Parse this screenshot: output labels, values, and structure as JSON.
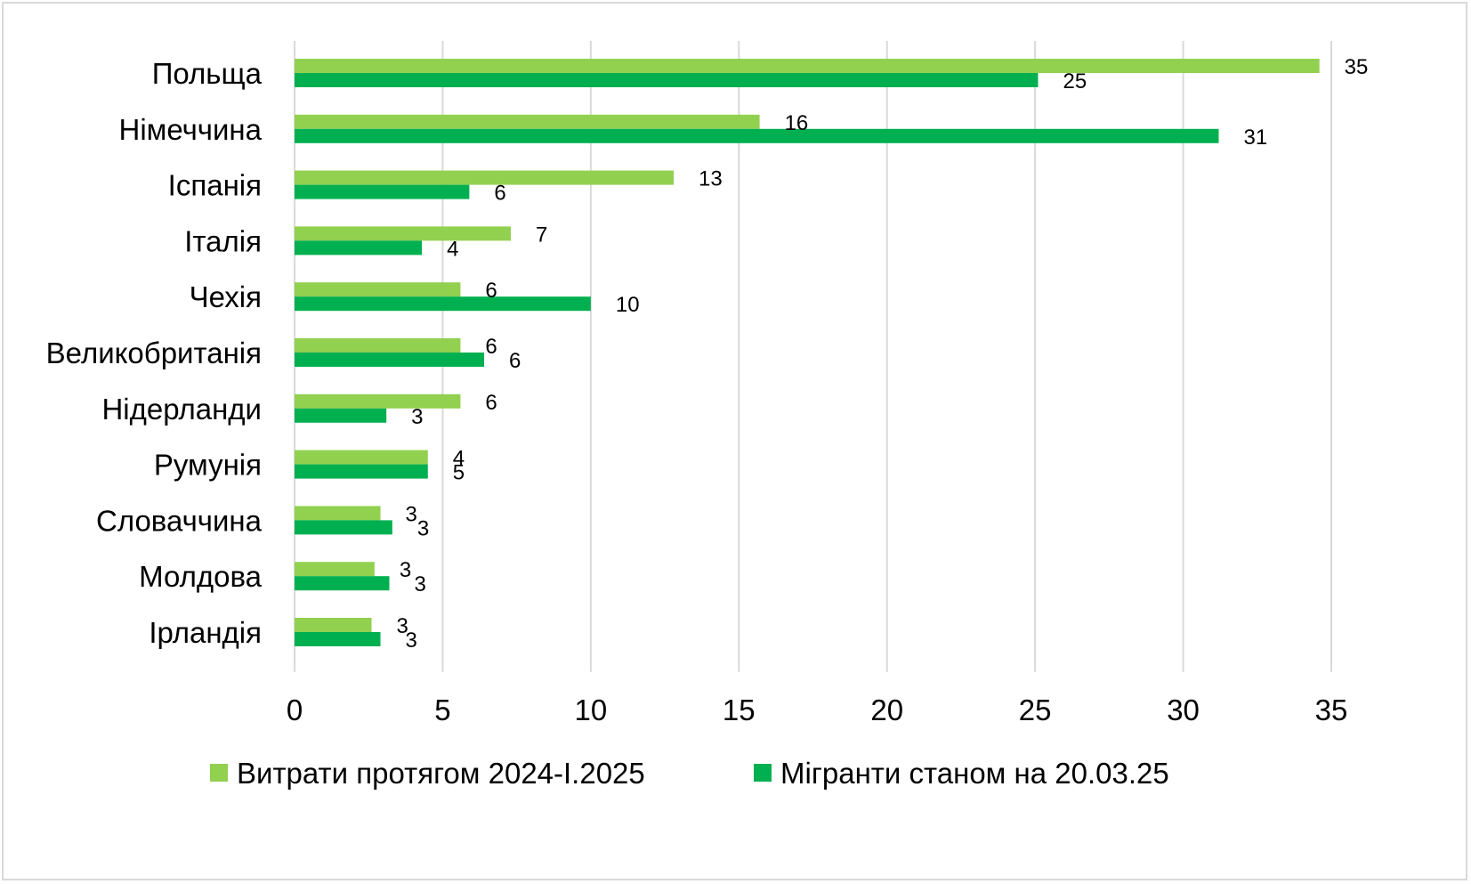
{
  "chart_data": {
    "type": "bar",
    "orientation": "horizontal",
    "title": "",
    "xlabel": "",
    "ylabel": "",
    "categories": [
      "Польща",
      "Німеччина",
      "Іспанія",
      "Італія",
      "Чехія",
      "Великобританія",
      "Нідерланди",
      "Румунія",
      "Словаччина",
      "Молдова",
      "Ірландія"
    ],
    "series": [
      {
        "name": "Витрати протягом 2024-І.2025",
        "color": "#92d050",
        "values": [
          34.6,
          15.7,
          12.8,
          7.3,
          5.6,
          5.6,
          5.6,
          4.5,
          2.9,
          2.7,
          2.6
        ],
        "labels": [
          "35",
          "16",
          "13",
          "7",
          "6",
          "6",
          "6",
          "4",
          "3",
          "3",
          "3"
        ]
      },
      {
        "name": "Мігранти станом на 20.03.25",
        "color": "#00b050",
        "values": [
          25.1,
          31.2,
          5.9,
          4.3,
          10.0,
          6.4,
          3.1,
          4.5,
          3.3,
          3.2,
          2.9
        ],
        "labels": [
          "25",
          "31",
          "6",
          "4",
          "10",
          "6",
          "3",
          "5",
          "3",
          "3",
          "3"
        ]
      }
    ],
    "xlim": [
      0,
      35
    ],
    "xticks": [
      "0",
      "5",
      "10",
      "15",
      "20",
      "25",
      "30",
      "35"
    ],
    "grid": true,
    "legend_position": "bottom"
  }
}
